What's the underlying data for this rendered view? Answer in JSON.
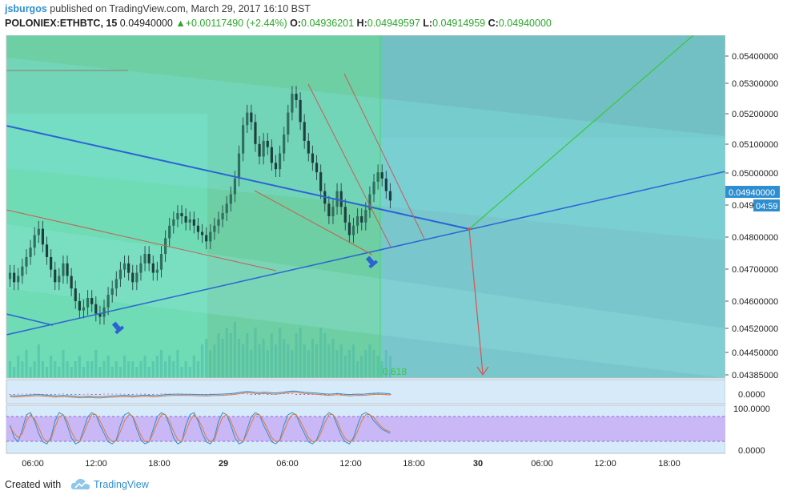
{
  "header": {
    "author": "jsburgos",
    "published_text": "published on TradingView.com, March 29, 2017 16:10 BST",
    "symbol": "POLONIEX:ETHBTC, 15",
    "last": "0.04940000",
    "change": "+0.00117490 (+2.44%)",
    "open_label": "O:",
    "open": "0.04936201",
    "high_label": "H:",
    "high": "0.04949597",
    "low_label": "L:",
    "low": "0.04914959",
    "close_label": "C:",
    "close": "0.04940000",
    "up_arrow": "up-triangle-icon"
  },
  "footer": {
    "created_with": "Created with",
    "brand": "TradingView",
    "logo_icon": "tradingview-cloud-icon"
  },
  "colors": {
    "green_zone": "#5fd6a8",
    "teal_zone": "#6fc2c8",
    "gray_zone": "#8fa39b",
    "candle": "#2f4f4f",
    "trend_blue": "#2b63d4",
    "trend_red": "#d9534f",
    "target_green": "#3ac83a",
    "price_tag": "#2d8fd0",
    "osc_band": "#c9b8f5"
  },
  "chart_data": {
    "type": "candlestick",
    "symbol": "POLONIEX:ETHBTC",
    "interval": "15",
    "price_axis_ticks": [
      "0.05400000",
      "0.05300000",
      "0.05200000",
      "0.05100000",
      "0.05000000",
      "0.049",
      "0.04800000",
      "0.04700000",
      "0.04600000",
      "0.04520000",
      "0.04450000",
      "0.04385000"
    ],
    "current_price_label": "0.04940000",
    "countdown_label": "04:59",
    "time_axis_ticks": [
      "06:00",
      "12:00",
      "18:00",
      "29",
      "06:00",
      "12:00",
      "18:00",
      "30",
      "06:00",
      "12:00",
      "18:00"
    ],
    "fib_label": "0.618",
    "close_series": [
      0.0471,
      0.0468,
      0.047,
      0.0473,
      0.0476,
      0.0479,
      0.0483,
      0.0485,
      0.048,
      0.0476,
      0.0472,
      0.0468,
      0.047,
      0.0474,
      0.047,
      0.0466,
      0.0462,
      0.0459,
      0.046,
      0.0463,
      0.0461,
      0.0458,
      0.0457,
      0.046,
      0.0464,
      0.0466,
      0.0469,
      0.0472,
      0.0474,
      0.0471,
      0.0468,
      0.0471,
      0.0474,
      0.0477,
      0.0474,
      0.0471,
      0.0472,
      0.0477,
      0.0482,
      0.0486,
      0.0488,
      0.049,
      0.0489,
      0.0487,
      0.0488,
      0.0486,
      0.0484,
      0.0483,
      0.0481,
      0.0484,
      0.0486,
      0.0488,
      0.049,
      0.0493,
      0.0496,
      0.0501,
      0.0509,
      0.0518,
      0.0522,
      0.0519,
      0.0512,
      0.0508,
      0.0513,
      0.0511,
      0.0506,
      0.0504,
      0.0509,
      0.0515,
      0.0522,
      0.0528,
      0.0526,
      0.0519,
      0.0513,
      0.0509,
      0.0506,
      0.0503,
      0.0497,
      0.0493,
      0.0489,
      0.0492,
      0.0497,
      0.0492,
      0.0487,
      0.0483,
      0.0486,
      0.0489,
      0.0487,
      0.0491,
      0.0496,
      0.05,
      0.0503,
      0.0501,
      0.0497,
      0.0494
    ],
    "volume_series": [
      0.3,
      0.2,
      0.4,
      0.3,
      0.5,
      0.2,
      0.3,
      0.6,
      0.3,
      0.2,
      0.4,
      0.3,
      0.2,
      0.5,
      0.3,
      0.2,
      0.3,
      0.4,
      0.2,
      0.3,
      0.3,
      0.5,
      0.2,
      0.3,
      0.4,
      0.2,
      0.3,
      0.2,
      0.4,
      0.3,
      0.3,
      0.2,
      0.3,
      0.4,
      0.2,
      0.3,
      0.4,
      0.5,
      0.3,
      0.4,
      0.3,
      0.5,
      0.2,
      0.3,
      0.2,
      0.4,
      0.3,
      0.6,
      0.7,
      0.5,
      0.6,
      0.8,
      0.7,
      0.9,
      0.8,
      1.0,
      0.7,
      0.6,
      0.8,
      0.5,
      0.9,
      0.6,
      0.7,
      0.5,
      0.8,
      0.6,
      0.9,
      0.7,
      0.6,
      0.5,
      0.8,
      0.9,
      0.6,
      0.5,
      0.7,
      0.6,
      0.9,
      0.8,
      0.6,
      0.7,
      0.5,
      0.6,
      0.4,
      0.5,
      0.6,
      0.3,
      0.4,
      0.5,
      0.6,
      0.5,
      0.4,
      0.3,
      0.5,
      0.4
    ],
    "macd_axis_ticks": [
      "0.0000"
    ],
    "stoch_axis_ticks": [
      "100.0000",
      "0.0000"
    ],
    "stoch_k": [
      60,
      30,
      20,
      50,
      85,
      90,
      70,
      40,
      20,
      15,
      30,
      70,
      90,
      85,
      60,
      30,
      15,
      20,
      50,
      80,
      90,
      85,
      60,
      40,
      20,
      15,
      25,
      60,
      85,
      90,
      80,
      50,
      25,
      15,
      20,
      50,
      80,
      90,
      85,
      60,
      30,
      15,
      20,
      60,
      85,
      90,
      70,
      40,
      20,
      15,
      30,
      70,
      90,
      85,
      60,
      30,
      15,
      20,
      50,
      80,
      90,
      85,
      60,
      40,
      20,
      15,
      25,
      60,
      85,
      90,
      85,
      60,
      40,
      20,
      15,
      25,
      50,
      80,
      90,
      85,
      60,
      35,
      20,
      15,
      30,
      60,
      85,
      90,
      85,
      70,
      60,
      50,
      45,
      40
    ],
    "stoch_d": [
      55,
      40,
      30,
      40,
      70,
      85,
      75,
      55,
      30,
      20,
      25,
      55,
      80,
      85,
      70,
      45,
      25,
      20,
      40,
      65,
      85,
      85,
      70,
      50,
      30,
      20,
      22,
      45,
      70,
      85,
      82,
      60,
      35,
      20,
      20,
      40,
      65,
      85,
      85,
      70,
      45,
      25,
      20,
      45,
      70,
      85,
      75,
      55,
      30,
      20,
      25,
      55,
      80,
      85,
      70,
      45,
      25,
      20,
      40,
      65,
      85,
      85,
      70,
      50,
      30,
      20,
      22,
      45,
      70,
      85,
      85,
      70,
      50,
      30,
      20,
      22,
      40,
      65,
      85,
      85,
      70,
      45,
      28,
      20,
      25,
      45,
      70,
      85,
      85,
      78,
      65,
      55,
      48,
      44
    ]
  }
}
